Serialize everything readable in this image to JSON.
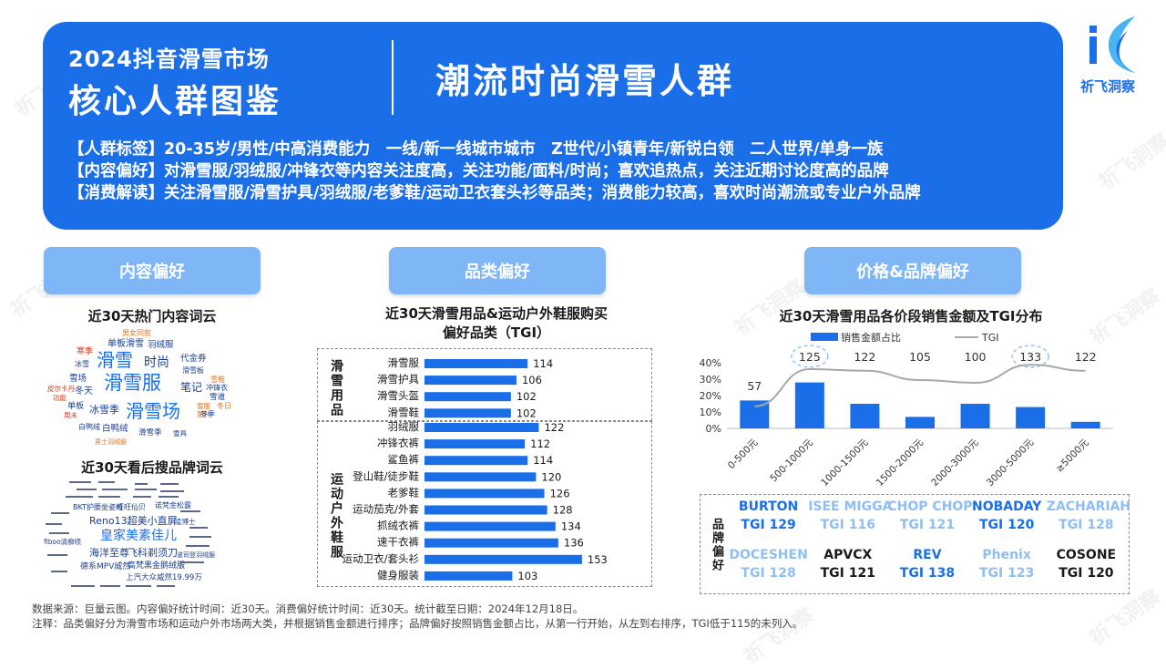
{
  "header": {
    "title_line1": "2024抖音滑雪市场",
    "title_line2": "核心人群图鉴",
    "persona": "潮流时尚滑雪人群",
    "tag_lines": [
      "【人群标签】20-35岁/男性/中高消费能力　一线/新一线城市城市　Z世代/小镇青年/新锐白领　二人世界/单身一族",
      "【内容偏好】对滑雪服/羽绒服/冲锋衣等内容关注度高，关注功能/面料/时尚；喜欢追热点，关注近期讨论度高的品牌",
      "【消费解读】关注滑雪服/滑雪护具/羽绒服/老爹鞋/运动卫衣套头衫等品类；消费能力较高，喜欢时尚潮流或专业户外品牌"
    ]
  },
  "logo": {
    "text": "祈飞洞察",
    "icon": "feather-k-logo-icon",
    "color": "#1a6fe8"
  },
  "sections": {
    "content": "内容偏好",
    "category": "品类偏好",
    "price_brand": "价格&品牌偏好"
  },
  "content_pref": {
    "hot_title": "近30天热门内容词云",
    "hot_words": [
      "男女同款",
      "寒季",
      "单板滑雪",
      "羽绒服",
      "冰雪",
      "滑雪",
      "时尚",
      "代金券",
      "雪场",
      "滑雪板",
      "皮尔卡丹",
      "滑雪服",
      "笔记",
      "雪鞋",
      "功能",
      "冬天",
      "冲锋衣",
      "单板",
      "冰雪季",
      "滑雪场",
      "雪道",
      "周末",
      "雪服",
      "面料",
      "冬日",
      "白鸭绒",
      "冬季",
      "滑雪季",
      "雪具",
      "男士羽绒服"
    ],
    "brand_title": "近30天看后搜品牌词云",
    "brand_words": [
      "Reno13超美小直屏",
      "皇家美素佳儿",
      "海洋至尊",
      "飞科剃须刀",
      "德系MPV威然",
      "高梵黑金鹅绒服",
      "上汽大众威然19.99万",
      "BKT护腰坐姿椅",
      "旺旺仙贝",
      "诺梵金松露",
      "fiboo清癣喷",
      "凌博士",
      "波司登羽绒服"
    ]
  },
  "category_pref": {
    "title_line1": "近30天滑雪用品&运动户外鞋服购买",
    "title_line2": "偏好品类（TGI）",
    "group1_label": "滑雪用品",
    "group2_label": "运动户外鞋服"
  },
  "chart_data": [
    {
      "type": "bar",
      "orientation": "horizontal",
      "title": "",
      "groups": [
        {
          "name": "滑雪用品",
          "categories": [
            "滑雪服",
            "滑雪护具",
            "滑雪头盔",
            "滑雪鞋"
          ],
          "values": [
            114,
            106,
            102,
            102
          ]
        },
        {
          "name": "运动户外鞋服",
          "categories": [
            "羽绒服",
            "冲锋衣裤",
            "鲨鱼裤",
            "登山鞋/徒步鞋",
            "老爹鞋",
            "运动茄克/外套",
            "抓绒衣裤",
            "速干衣裤",
            "运动卫衣/套头衫",
            "健身服装"
          ],
          "values": [
            122,
            112,
            114,
            120,
            126,
            128,
            134,
            136,
            153,
            103
          ]
        }
      ],
      "bar_color": "#1a6fe8"
    },
    {
      "type": "bar",
      "title": "近30天滑雪用品各价段销售金额及TGI分布",
      "categories": [
        "0-500元",
        "500-1000元",
        "1000-1500元",
        "1500-2000元",
        "2000-3000元",
        "3000-5000元",
        "≥5000元"
      ],
      "series": [
        {
          "name": "销售金额占比",
          "values": [
            17,
            28,
            15,
            7,
            15,
            13,
            4
          ],
          "unit": "%",
          "color": "#1a6fe8"
        },
        {
          "name": "TGI",
          "values": [
            57,
            125,
            122,
            105,
            100,
            133,
            122
          ],
          "type": "line",
          "color": "#a8a8a8"
        }
      ],
      "ylim": [
        0,
        40
      ],
      "y_ticks": [
        "40%",
        "30%",
        "20%",
        "10%",
        "0%"
      ],
      "highlighted_tgi": [
        "125",
        "133"
      ],
      "legend_position": "top"
    }
  ],
  "brand_pref": {
    "label": "品牌偏好",
    "brands": [
      {
        "name": "BURTON",
        "tgi": "TGI  129",
        "color": "#1a6fe8"
      },
      {
        "name": "ISEE MIGGA",
        "tgi": "TGI 116",
        "color": "#8fbef2"
      },
      {
        "name": "CHOP CHOP",
        "tgi": "TGI  121",
        "color": "#8fbef2"
      },
      {
        "name": "NOBADAY",
        "tgi": "TGI  120",
        "color": "#1a6fe8"
      },
      {
        "name": "ZACHARIAH",
        "tgi": "TGI  128",
        "color": "#8fbef2"
      },
      {
        "name": "DOCESHEN",
        "tgi": "TGI  128",
        "color": "#8fbef2"
      },
      {
        "name": "APVCX",
        "tgi": "TGI  121",
        "color": "#1a1a1a"
      },
      {
        "name": "REV",
        "tgi": "TGI  138",
        "color": "#1a6fe8"
      },
      {
        "name": "Phenix",
        "tgi": "TGI  123",
        "color": "#8fbef2"
      },
      {
        "name": "COSONE",
        "tgi": "TGI  120",
        "color": "#1a1a1a"
      }
    ]
  },
  "footer": {
    "line1": "数据来源：巨量云图。内容偏好统计时间：近30天。消费偏好统计时间：近30天。统计截至日期：2024年12月18日。",
    "line2": "注释：品类偏好分为滑雪市场和运动户外市场两大类，并根据销售金额进行排序；品牌偏好按照销售金额占比，从第一行开始，从左到右排序，TGI低于115的未列入。"
  }
}
